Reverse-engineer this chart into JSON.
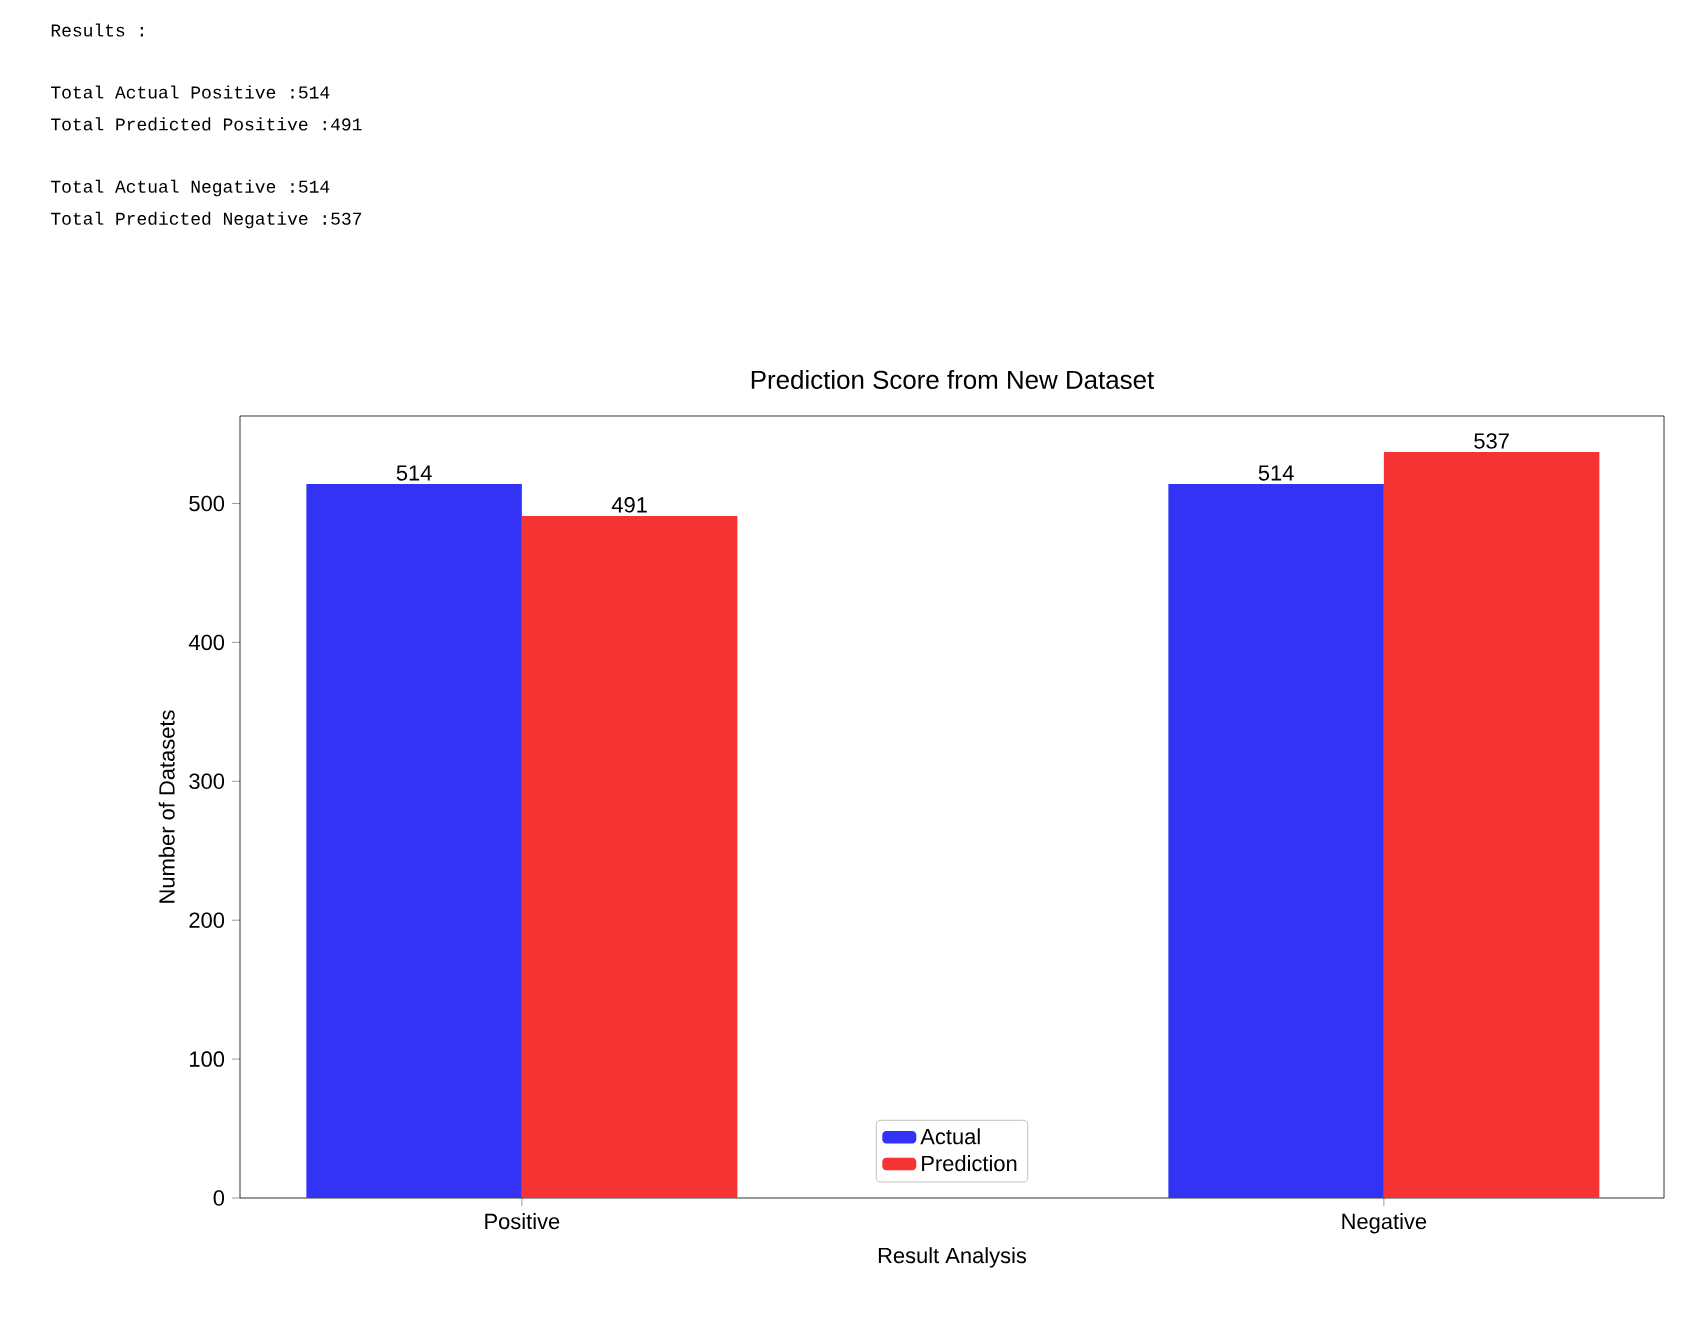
{
  "chart_data": {
    "type": "bar",
    "title": "Prediction Score from New Dataset",
    "xlabel": "Result Analysis",
    "ylabel": "Number of Datasets",
    "categories": [
      "Positive",
      "Negative"
    ],
    "series": [
      {
        "name": "Actual",
        "color": "#3333f5",
        "values": [
          514,
          514
        ]
      },
      {
        "name": "Prediction",
        "color": "#f53333",
        "values": [
          491,
          537
        ]
      }
    ],
    "ylim": [
      0,
      563
    ],
    "yticks": [
      0,
      100,
      200,
      300,
      400,
      500
    ],
    "grid": false,
    "legend": "bottom",
    "data_labels": true,
    "annotations": [
      "Results :",
      "Total Actual Positive :514",
      "Total Predicted Positive :491",
      "Total Actual Negative :514",
      "Total Predicted Negative :537"
    ]
  }
}
